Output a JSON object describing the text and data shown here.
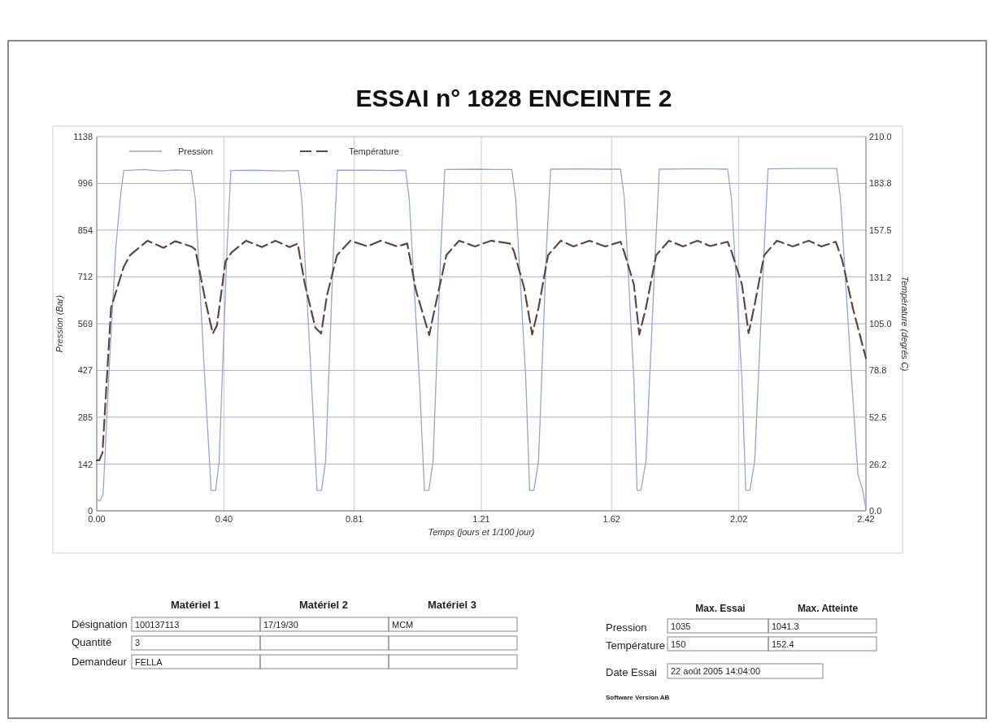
{
  "chart_data": {
    "type": "line",
    "title": "ESSAI n° 1828 ENCEINTE 2",
    "xlabel": "Temps (jours et 1/100 jour)",
    "ylabel": "Pression (Bar)",
    "y2label": "Température (degrés C)",
    "xlim": [
      0,
      2.42
    ],
    "xticks": [
      {
        "value": 0,
        "label": "0.00"
      },
      {
        "value": 0.4,
        "label": "0.40"
      },
      0.81,
      1.21,
      1.62,
      2.02,
      2.42
    ],
    "ylim": [
      0,
      1138
    ],
    "yticks": [
      0,
      142,
      285,
      427,
      569,
      712,
      854,
      996,
      1138
    ],
    "y2lim": [
      0,
      210
    ],
    "y2ticks": [
      {
        "value": 0,
        "label": "0.0"
      },
      26.2,
      52.5,
      78.8,
      {
        "value": 105,
        "label": "105.0"
      },
      131.2,
      157.5,
      183.8,
      {
        "value": 210,
        "label": "210.0"
      }
    ],
    "grid": true,
    "legend": "top left",
    "series": [
      {
        "name": "Pression",
        "color": "#9aa6c4",
        "line_style": "solid",
        "x": [
          0,
          0.01,
          0.02,
          0.04,
          0.06,
          0.075,
          0.085,
          0.15,
          0.2,
          0.25,
          0.297,
          0.31,
          0.34,
          0.36,
          0.374,
          0.385,
          0.41,
          0.422,
          0.5,
          0.58,
          0.634,
          0.645,
          0.675,
          0.693,
          0.707,
          0.72,
          0.745,
          0.757,
          0.85,
          0.92,
          0.972,
          0.983,
          1.015,
          1.031,
          1.045,
          1.058,
          1.083,
          1.095,
          1.2,
          1.25,
          1.306,
          1.318,
          1.35,
          1.362,
          1.375,
          1.39,
          1.415,
          1.428,
          1.52,
          1.6,
          1.648,
          1.66,
          1.69,
          1.7,
          1.712,
          1.728,
          1.758,
          1.77,
          1.86,
          1.94,
          1.985,
          1.997,
          2.03,
          2.042,
          2.055,
          2.07,
          2.1,
          2.112,
          2.2,
          2.28,
          2.328,
          2.34,
          2.375,
          2.395,
          2.41,
          2.42
        ],
        "values": [
          35,
          30,
          50,
          450,
          800,
          960,
          1035,
          1038,
          1034,
          1037,
          1035,
          950,
          400,
          62,
          62,
          150,
          800,
          1035,
          1036,
          1034,
          1035,
          950,
          400,
          62,
          62,
          150,
          800,
          1036,
          1036,
          1035,
          1036,
          950,
          400,
          62,
          62,
          150,
          800,
          1038,
          1039,
          1038,
          1038,
          950,
          400,
          62,
          62,
          150,
          800,
          1039,
          1040,
          1039,
          1039,
          950,
          400,
          62,
          62,
          150,
          800,
          1039,
          1040,
          1040,
          1039,
          950,
          400,
          62,
          62,
          150,
          800,
          1040,
          1041,
          1041,
          1041,
          950,
          400,
          110,
          62,
          5
        ]
      },
      {
        "name": "Température",
        "color": "#5a4848",
        "line_style": "dashed",
        "axis": "y2",
        "x": [
          0,
          0.008,
          0.018,
          0.045,
          0.085,
          0.105,
          0.16,
          0.21,
          0.247,
          0.297,
          0.31,
          0.343,
          0.365,
          0.378,
          0.405,
          0.424,
          0.47,
          0.52,
          0.562,
          0.607,
          0.632,
          0.655,
          0.688,
          0.706,
          0.724,
          0.756,
          0.798,
          0.852,
          0.893,
          0.945,
          0.977,
          1.004,
          1.046,
          1.064,
          1.1,
          1.14,
          1.19,
          1.24,
          1.3,
          1.312,
          1.345,
          1.37,
          1.39,
          1.42,
          1.46,
          1.5,
          1.55,
          1.6,
          1.648,
          1.66,
          1.69,
          1.707,
          1.728,
          1.76,
          1.8,
          1.845,
          1.89,
          1.93,
          1.985,
          1.998,
          2.03,
          2.051,
          2.068,
          2.1,
          2.14,
          2.19,
          2.24,
          2.28,
          2.325,
          2.345,
          2.38,
          2.42
        ],
        "values": [
          28.4,
          28.4,
          32.6,
          114,
          137,
          143.5,
          151.6,
          147.6,
          151.3,
          148.4,
          146.7,
          117,
          99.5,
          104,
          140,
          145,
          151.6,
          148,
          151.6,
          148,
          150,
          127,
          102.7,
          99.5,
          120.6,
          143.5,
          151.6,
          148.4,
          151.6,
          148.4,
          150,
          124,
          98.6,
          114,
          143.5,
          151.6,
          148.4,
          151.6,
          150,
          146,
          125,
          98.9,
          114,
          143.5,
          151.6,
          148.4,
          151.6,
          148.4,
          151,
          145,
          127,
          98.9,
          114,
          143.5,
          151.6,
          148.4,
          151.6,
          148.6,
          151,
          145,
          127,
          99.7,
          114,
          143.5,
          151.6,
          148.4,
          151.6,
          148.4,
          151,
          141,
          113,
          85.7
        ]
      }
    ],
    "annotations": [
      "Matériel 1",
      "Matériel 2",
      "Matériel 3",
      "Désignation",
      "100137113",
      "17/19/30",
      "MCM",
      "Quantité",
      "3",
      "Demandeur",
      "FELLA",
      "Max. Essai",
      "Max. Atteinte",
      "Pression",
      "1035",
      "1041.3",
      "Température",
      "150",
      "152.4",
      "Date Essai",
      "22 août 2005 14:04:00",
      "Software Version AB"
    ]
  }
}
